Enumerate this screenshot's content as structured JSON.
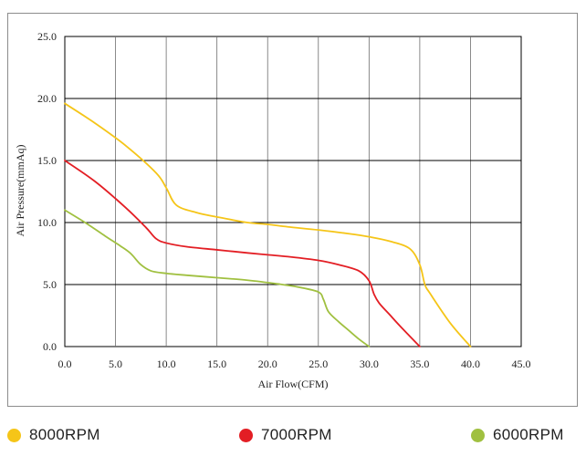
{
  "chart_data": {
    "type": "line",
    "title": "",
    "xlabel": "Air Flow(CFM)",
    "ylabel": "Air Pressure(mmAq)",
    "xlim": [
      0,
      45
    ],
    "ylim": [
      0,
      25
    ],
    "x_ticks": [
      0,
      5,
      10,
      15,
      20,
      25,
      30,
      35,
      40,
      45
    ],
    "x_tick_labels": [
      "0.0",
      "5.0",
      "10.0",
      "15.0",
      "20.0",
      "25.0",
      "30.0",
      "35.0",
      "40.0",
      "45.0"
    ],
    "y_ticks": [
      0,
      5,
      10,
      15,
      20,
      25
    ],
    "y_tick_labels": [
      "0.0",
      "5.0",
      "10.0",
      "15.0",
      "20.0",
      "25.0"
    ],
    "grid": true,
    "legend_position": "bottom",
    "series": [
      {
        "name": "8000RPM",
        "color": "#f5c518",
        "x": [
          0,
          3,
          6,
          9,
          10,
          11,
          13,
          15,
          18,
          20,
          22,
          25,
          28,
          30,
          32,
          34,
          35,
          35.5,
          36,
          38,
          40
        ],
        "y": [
          19.6,
          18.0,
          16.2,
          14.0,
          12.8,
          11.4,
          10.8,
          10.45,
          10.0,
          9.85,
          9.65,
          9.4,
          9.1,
          8.85,
          8.5,
          7.9,
          6.6,
          5.0,
          4.3,
          1.9,
          0.0
        ]
      },
      {
        "name": "7000RPM",
        "color": "#e31e24",
        "x": [
          0,
          3,
          6,
          8,
          9,
          10,
          12,
          15,
          18,
          20,
          22,
          25,
          27,
          29,
          30,
          30.5,
          31,
          32,
          33,
          34,
          35
        ],
        "y": [
          15.0,
          13.3,
          11.2,
          9.6,
          8.7,
          8.35,
          8.05,
          7.8,
          7.55,
          7.4,
          7.25,
          6.95,
          6.6,
          6.1,
          5.3,
          4.2,
          3.5,
          2.6,
          1.7,
          0.85,
          0.0
        ]
      },
      {
        "name": "6000RPM",
        "color": "#a0c040",
        "x": [
          0,
          2,
          4,
          5.5,
          6.5,
          7.5,
          8.5,
          10,
          12,
          15,
          18,
          21,
          23,
          25,
          25.5,
          26,
          27,
          28,
          29,
          30
        ],
        "y": [
          11.0,
          10.0,
          8.9,
          8.1,
          7.5,
          6.6,
          6.1,
          5.9,
          5.75,
          5.55,
          5.35,
          5.05,
          4.8,
          4.4,
          3.8,
          2.8,
          2.0,
          1.3,
          0.6,
          0.0
        ]
      }
    ]
  }
}
